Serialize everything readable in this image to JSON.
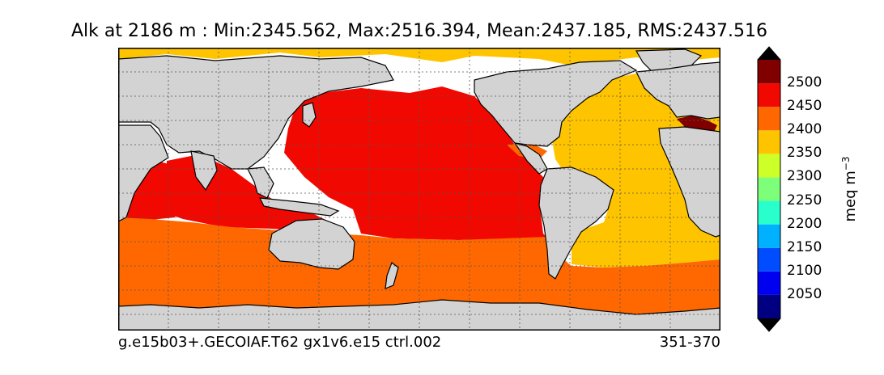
{
  "title": "Alk at 2186 m : Min:2345.562, Max:2516.394, Mean:2437.185, RMS:2437.516",
  "caption": {
    "left": "g.e15b03+.GECOIAF.T62 gx1v6.e15 ctrl.002",
    "right": "351-370"
  },
  "colorbar": {
    "label": "meq m",
    "label_exponent": "−3",
    "ticks": [
      "2050",
      "2100",
      "2150",
      "2200",
      "2250",
      "2300",
      "2350",
      "2400",
      "2450",
      "2500"
    ],
    "levels": [
      {
        "range": [
          2000,
          2050
        ],
        "color": "#000080"
      },
      {
        "range": [
          2050,
          2100
        ],
        "color": "#0000f1"
      },
      {
        "range": [
          2100,
          2150
        ],
        "color": "#004dff"
      },
      {
        "range": [
          2150,
          2200
        ],
        "color": "#00b1ff"
      },
      {
        "range": [
          2200,
          2250
        ],
        "color": "#29ffcd"
      },
      {
        "range": [
          2250,
          2300
        ],
        "color": "#7dff7a"
      },
      {
        "range": [
          2300,
          2350
        ],
        "color": "#cdff29"
      },
      {
        "range": [
          2350,
          2400
        ],
        "color": "#ffc400"
      },
      {
        "range": [
          2400,
          2450
        ],
        "color": "#ff6800"
      },
      {
        "range": [
          2450,
          2500
        ],
        "color": "#f10800"
      },
      {
        "range": [
          2500,
          2550
        ],
        "color": "#800000"
      }
    ],
    "extend": "both",
    "under_color": "#000000",
    "over_color": "#000000"
  },
  "map": {
    "projection": "cylindrical",
    "land_color": "#d3d3d3",
    "missing_color": "#ffffff",
    "grid": "dashed",
    "regions": {
      "arctic": "#ffc400",
      "atlantic": "#ffc400",
      "pacific": "#f10800",
      "indian": "#f10800",
      "southern": "#ff6800",
      "mediterranean": "#800000",
      "caribbean": "#ff6800"
    }
  }
}
